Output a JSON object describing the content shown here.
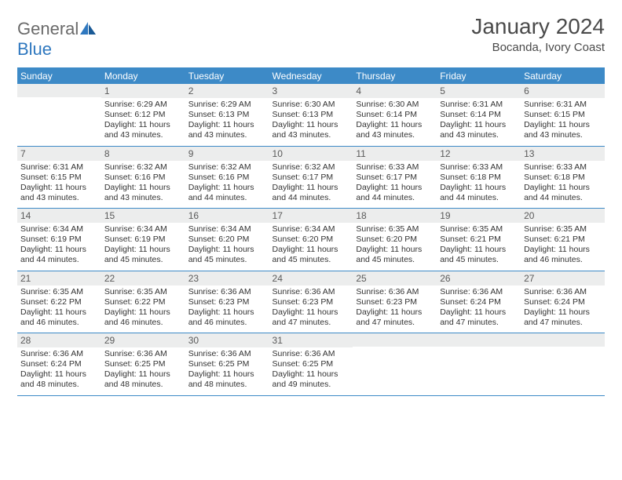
{
  "logo": {
    "word1": "General",
    "word2": "Blue"
  },
  "title": "January 2024",
  "location": "Bocanda, Ivory Coast",
  "colors": {
    "header_bg": "#3d8ac7",
    "header_text": "#ffffff",
    "daynum_bg": "#eceded",
    "border": "#3d8ac7",
    "logo_gray": "#6a6a6a",
    "logo_blue": "#2f78bf"
  },
  "weekdays": [
    "Sunday",
    "Monday",
    "Tuesday",
    "Wednesday",
    "Thursday",
    "Friday",
    "Saturday"
  ],
  "weeks": [
    [
      {
        "n": "",
        "sunrise": "",
        "sunset": "",
        "daylight": ""
      },
      {
        "n": "1",
        "sunrise": "Sunrise: 6:29 AM",
        "sunset": "Sunset: 6:12 PM",
        "daylight": "Daylight: 11 hours and 43 minutes."
      },
      {
        "n": "2",
        "sunrise": "Sunrise: 6:29 AM",
        "sunset": "Sunset: 6:13 PM",
        "daylight": "Daylight: 11 hours and 43 minutes."
      },
      {
        "n": "3",
        "sunrise": "Sunrise: 6:30 AM",
        "sunset": "Sunset: 6:13 PM",
        "daylight": "Daylight: 11 hours and 43 minutes."
      },
      {
        "n": "4",
        "sunrise": "Sunrise: 6:30 AM",
        "sunset": "Sunset: 6:14 PM",
        "daylight": "Daylight: 11 hours and 43 minutes."
      },
      {
        "n": "5",
        "sunrise": "Sunrise: 6:31 AM",
        "sunset": "Sunset: 6:14 PM",
        "daylight": "Daylight: 11 hours and 43 minutes."
      },
      {
        "n": "6",
        "sunrise": "Sunrise: 6:31 AM",
        "sunset": "Sunset: 6:15 PM",
        "daylight": "Daylight: 11 hours and 43 minutes."
      }
    ],
    [
      {
        "n": "7",
        "sunrise": "Sunrise: 6:31 AM",
        "sunset": "Sunset: 6:15 PM",
        "daylight": "Daylight: 11 hours and 43 minutes."
      },
      {
        "n": "8",
        "sunrise": "Sunrise: 6:32 AM",
        "sunset": "Sunset: 6:16 PM",
        "daylight": "Daylight: 11 hours and 43 minutes."
      },
      {
        "n": "9",
        "sunrise": "Sunrise: 6:32 AM",
        "sunset": "Sunset: 6:16 PM",
        "daylight": "Daylight: 11 hours and 44 minutes."
      },
      {
        "n": "10",
        "sunrise": "Sunrise: 6:32 AM",
        "sunset": "Sunset: 6:17 PM",
        "daylight": "Daylight: 11 hours and 44 minutes."
      },
      {
        "n": "11",
        "sunrise": "Sunrise: 6:33 AM",
        "sunset": "Sunset: 6:17 PM",
        "daylight": "Daylight: 11 hours and 44 minutes."
      },
      {
        "n": "12",
        "sunrise": "Sunrise: 6:33 AM",
        "sunset": "Sunset: 6:18 PM",
        "daylight": "Daylight: 11 hours and 44 minutes."
      },
      {
        "n": "13",
        "sunrise": "Sunrise: 6:33 AM",
        "sunset": "Sunset: 6:18 PM",
        "daylight": "Daylight: 11 hours and 44 minutes."
      }
    ],
    [
      {
        "n": "14",
        "sunrise": "Sunrise: 6:34 AM",
        "sunset": "Sunset: 6:19 PM",
        "daylight": "Daylight: 11 hours and 44 minutes."
      },
      {
        "n": "15",
        "sunrise": "Sunrise: 6:34 AM",
        "sunset": "Sunset: 6:19 PM",
        "daylight": "Daylight: 11 hours and 45 minutes."
      },
      {
        "n": "16",
        "sunrise": "Sunrise: 6:34 AM",
        "sunset": "Sunset: 6:20 PM",
        "daylight": "Daylight: 11 hours and 45 minutes."
      },
      {
        "n": "17",
        "sunrise": "Sunrise: 6:34 AM",
        "sunset": "Sunset: 6:20 PM",
        "daylight": "Daylight: 11 hours and 45 minutes."
      },
      {
        "n": "18",
        "sunrise": "Sunrise: 6:35 AM",
        "sunset": "Sunset: 6:20 PM",
        "daylight": "Daylight: 11 hours and 45 minutes."
      },
      {
        "n": "19",
        "sunrise": "Sunrise: 6:35 AM",
        "sunset": "Sunset: 6:21 PM",
        "daylight": "Daylight: 11 hours and 45 minutes."
      },
      {
        "n": "20",
        "sunrise": "Sunrise: 6:35 AM",
        "sunset": "Sunset: 6:21 PM",
        "daylight": "Daylight: 11 hours and 46 minutes."
      }
    ],
    [
      {
        "n": "21",
        "sunrise": "Sunrise: 6:35 AM",
        "sunset": "Sunset: 6:22 PM",
        "daylight": "Daylight: 11 hours and 46 minutes."
      },
      {
        "n": "22",
        "sunrise": "Sunrise: 6:35 AM",
        "sunset": "Sunset: 6:22 PM",
        "daylight": "Daylight: 11 hours and 46 minutes."
      },
      {
        "n": "23",
        "sunrise": "Sunrise: 6:36 AM",
        "sunset": "Sunset: 6:23 PM",
        "daylight": "Daylight: 11 hours and 46 minutes."
      },
      {
        "n": "24",
        "sunrise": "Sunrise: 6:36 AM",
        "sunset": "Sunset: 6:23 PM",
        "daylight": "Daylight: 11 hours and 47 minutes."
      },
      {
        "n": "25",
        "sunrise": "Sunrise: 6:36 AM",
        "sunset": "Sunset: 6:23 PM",
        "daylight": "Daylight: 11 hours and 47 minutes."
      },
      {
        "n": "26",
        "sunrise": "Sunrise: 6:36 AM",
        "sunset": "Sunset: 6:24 PM",
        "daylight": "Daylight: 11 hours and 47 minutes."
      },
      {
        "n": "27",
        "sunrise": "Sunrise: 6:36 AM",
        "sunset": "Sunset: 6:24 PM",
        "daylight": "Daylight: 11 hours and 47 minutes."
      }
    ],
    [
      {
        "n": "28",
        "sunrise": "Sunrise: 6:36 AM",
        "sunset": "Sunset: 6:24 PM",
        "daylight": "Daylight: 11 hours and 48 minutes."
      },
      {
        "n": "29",
        "sunrise": "Sunrise: 6:36 AM",
        "sunset": "Sunset: 6:25 PM",
        "daylight": "Daylight: 11 hours and 48 minutes."
      },
      {
        "n": "30",
        "sunrise": "Sunrise: 6:36 AM",
        "sunset": "Sunset: 6:25 PM",
        "daylight": "Daylight: 11 hours and 48 minutes."
      },
      {
        "n": "31",
        "sunrise": "Sunrise: 6:36 AM",
        "sunset": "Sunset: 6:25 PM",
        "daylight": "Daylight: 11 hours and 49 minutes."
      },
      {
        "n": "",
        "sunrise": "",
        "sunset": "",
        "daylight": ""
      },
      {
        "n": "",
        "sunrise": "",
        "sunset": "",
        "daylight": ""
      },
      {
        "n": "",
        "sunrise": "",
        "sunset": "",
        "daylight": ""
      }
    ]
  ]
}
